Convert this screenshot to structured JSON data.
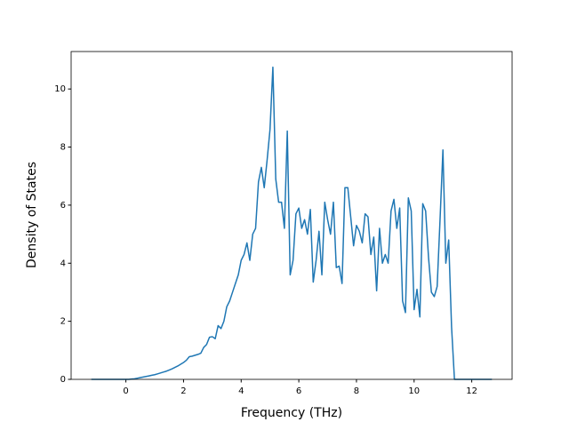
{
  "chart_data": {
    "type": "line",
    "xlabel": "Frequency (THz)",
    "ylabel": "Density of States",
    "x": [
      -1.2,
      -1.1,
      -1.0,
      -0.9,
      -0.8,
      -0.7,
      -0.6,
      -0.5,
      -0.4,
      -0.3,
      -0.2,
      -0.1,
      0.0,
      0.1,
      0.2,
      0.3,
      0.4,
      0.5,
      0.6,
      0.7,
      0.8,
      0.9,
      1.0,
      1.1,
      1.2,
      1.3,
      1.4,
      1.5,
      1.6,
      1.7,
      1.8,
      1.9,
      2.0,
      2.1,
      2.2,
      2.3,
      2.4,
      2.5,
      2.6,
      2.7,
      2.8,
      2.9,
      3.0,
      3.1,
      3.2,
      3.3,
      3.4,
      3.5,
      3.6,
      3.7,
      3.8,
      3.9,
      4.0,
      4.1,
      4.2,
      4.3,
      4.4,
      4.5,
      4.6,
      4.7,
      4.8,
      4.9,
      5.0,
      5.1,
      5.2,
      5.3,
      5.4,
      5.5,
      5.6,
      5.7,
      5.8,
      5.9,
      6.0,
      6.1,
      6.2,
      6.3,
      6.4,
      6.5,
      6.6,
      6.7,
      6.8,
      6.9,
      7.0,
      7.1,
      7.2,
      7.3,
      7.4,
      7.5,
      7.6,
      7.7,
      7.8,
      7.9,
      8.0,
      8.1,
      8.2,
      8.3,
      8.4,
      8.5,
      8.6,
      8.7,
      8.8,
      8.9,
      9.0,
      9.1,
      9.2,
      9.3,
      9.4,
      9.5,
      9.6,
      9.7,
      9.8,
      9.9,
      10.0,
      10.1,
      10.2,
      10.3,
      10.4,
      10.5,
      10.6,
      10.7,
      10.8,
      10.9,
      11.0,
      11.1,
      11.2,
      11.3,
      11.4,
      11.5,
      11.6,
      11.7,
      11.8,
      11.9,
      12.0,
      12.1,
      12.2,
      12.3,
      12.4,
      12.5,
      12.6,
      12.7
    ],
    "series": [
      {
        "color": "#1f77b4",
        "values": [
          0,
          0,
          0,
          0,
          0,
          0,
          0,
          0,
          0,
          0,
          0,
          0,
          0,
          0,
          0.01,
          0.02,
          0.04,
          0.06,
          0.08,
          0.1,
          0.12,
          0.14,
          0.16,
          0.19,
          0.22,
          0.25,
          0.28,
          0.32,
          0.36,
          0.41,
          0.46,
          0.52,
          0.58,
          0.66,
          0.78,
          0.8,
          0.83,
          0.86,
          0.9,
          1.1,
          1.2,
          1.45,
          1.47,
          1.4,
          1.85,
          1.75,
          2.0,
          2.5,
          2.7,
          3.0,
          3.3,
          3.6,
          4.1,
          4.3,
          4.7,
          4.1,
          5.0,
          5.2,
          6.8,
          7.3,
          6.6,
          7.55,
          8.6,
          10.75,
          6.9,
          6.1,
          6.1,
          5.2,
          8.55,
          3.6,
          4.1,
          5.7,
          5.9,
          5.2,
          5.5,
          5.0,
          5.85,
          3.35,
          4.1,
          5.1,
          3.6,
          6.1,
          5.5,
          5.0,
          6.1,
          3.85,
          3.9,
          3.3,
          6.6,
          6.6,
          5.6,
          4.6,
          5.3,
          5.1,
          4.7,
          5.7,
          5.6,
          4.3,
          4.9,
          3.05,
          5.2,
          4.0,
          4.3,
          4.0,
          5.8,
          6.2,
          5.2,
          5.9,
          2.7,
          2.3,
          6.25,
          5.8,
          2.4,
          3.1,
          2.15,
          6.05,
          5.8,
          4.2,
          3.0,
          2.85,
          3.2,
          5.5,
          7.9,
          4.0,
          4.8,
          1.8,
          0,
          0,
          0,
          0,
          0,
          0,
          0,
          0,
          0,
          0,
          0,
          0,
          0,
          0
        ]
      }
    ],
    "xlim": [
      -1.9,
      13.4
    ],
    "ylim": [
      0,
      11.29
    ],
    "xticks": [
      0,
      2,
      4,
      6,
      8,
      10,
      12
    ],
    "yticks": [
      0,
      2,
      4,
      6,
      8,
      10
    ]
  }
}
